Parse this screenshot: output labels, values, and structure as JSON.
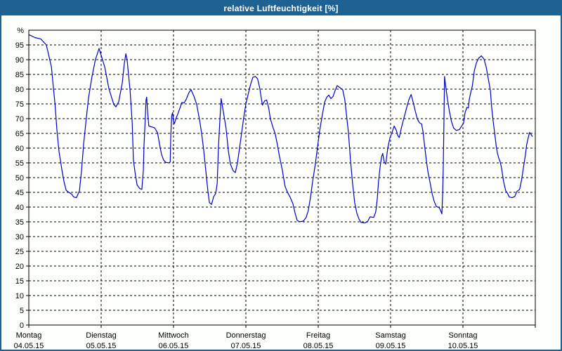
{
  "window": {
    "title": "relative Luftfeuchtigkeit [%]",
    "title_bar_color": "#1d6293",
    "border_color": "#1d6293",
    "background_color": "#fdfffc"
  },
  "chart_data": {
    "type": "line",
    "title": "relative Luftfeuchtigkeit [%]",
    "ylabel": "%",
    "unit_label": "%",
    "ylim": [
      0,
      100
    ],
    "xlim_hours": [
      0,
      168
    ],
    "y_tick_step": 5,
    "y_tick_labels": [
      "0",
      "5",
      "10",
      "15",
      "20",
      "25",
      "30",
      "35",
      "40",
      "45",
      "50",
      "55",
      "60",
      "65",
      "70",
      "75",
      "80",
      "85",
      "90",
      "95"
    ],
    "grid": "dashed",
    "legend": "none",
    "line_color": "#0000c8",
    "x_axis": {
      "days": [
        {
          "name": "Montag",
          "date": "04.05.15"
        },
        {
          "name": "Dienstag",
          "date": "05.05.15"
        },
        {
          "name": "Mittwoch",
          "date": "06.05.15"
        },
        {
          "name": "Donnerstag",
          "date": "07.05.15"
        },
        {
          "name": "Freitag",
          "date": "08.05.15"
        },
        {
          "name": "Samstag",
          "date": "09.05.15"
        },
        {
          "name": "Sonntag",
          "date": "10.05.15"
        }
      ]
    },
    "series": [
      {
        "name": "relative Luftfeuchtigkeit",
        "points": [
          [
            0,
            98.5
          ],
          [
            2,
            97.5
          ],
          [
            4,
            97
          ],
          [
            5.8,
            95
          ],
          [
            6.5,
            92
          ],
          [
            7.5,
            87.5
          ],
          [
            8.2,
            80
          ],
          [
            8.7,
            75
          ],
          [
            9.3,
            66.5
          ],
          [
            10,
            59
          ],
          [
            11,
            52.5
          ],
          [
            11.7,
            48.5
          ],
          [
            12.4,
            45.7
          ],
          [
            13.3,
            45
          ],
          [
            14.2,
            44.4
          ],
          [
            14.9,
            43.4
          ],
          [
            15.8,
            43.2
          ],
          [
            16.8,
            45.5
          ],
          [
            17.5,
            52.5
          ],
          [
            18.2,
            61.5
          ],
          [
            19.1,
            70.5
          ],
          [
            19.8,
            77
          ],
          [
            21,
            84.5
          ],
          [
            22.1,
            90
          ],
          [
            23.3,
            93.8
          ],
          [
            24,
            91.5
          ],
          [
            25.2,
            87.5
          ],
          [
            26.6,
            80
          ],
          [
            28.2,
            74.8
          ],
          [
            28.9,
            74
          ],
          [
            29.8,
            75.7
          ],
          [
            31,
            82
          ],
          [
            31.7,
            88.8
          ],
          [
            32.2,
            92
          ],
          [
            32.6,
            90
          ],
          [
            33.6,
            79.5
          ],
          [
            34.3,
            68.5
          ],
          [
            34.7,
            56
          ],
          [
            35.2,
            52
          ],
          [
            35.9,
            47.5
          ],
          [
            36.8,
            46.3
          ],
          [
            37.5,
            46
          ],
          [
            38,
            52.5
          ],
          [
            38.2,
            60.5
          ],
          [
            38.5,
            67
          ],
          [
            38.9,
            76.4
          ],
          [
            39.1,
            77.3
          ],
          [
            39.4,
            72.5
          ],
          [
            39.8,
            67.5
          ],
          [
            40.8,
            67.2
          ],
          [
            41.7,
            66.9
          ],
          [
            42.7,
            65.2
          ],
          [
            43.3,
            61.7
          ],
          [
            44,
            58
          ],
          [
            44.7,
            56
          ],
          [
            45.4,
            55.2
          ],
          [
            46.4,
            55
          ],
          [
            46.9,
            55.3
          ],
          [
            47.1,
            64
          ],
          [
            47.4,
            71
          ],
          [
            47.7,
            72
          ],
          [
            48,
            69
          ],
          [
            48.3,
            68.3
          ],
          [
            48.8,
            70
          ],
          [
            49.4,
            71.5
          ],
          [
            50.1,
            73.5
          ],
          [
            50.8,
            75.5
          ],
          [
            51.5,
            75.3
          ],
          [
            52.2,
            76.5
          ],
          [
            53.1,
            78.8
          ],
          [
            53.8,
            79.8
          ],
          [
            54.8,
            77.5
          ],
          [
            55.7,
            74.8
          ],
          [
            56.6,
            69.8
          ],
          [
            57.3,
            65.2
          ],
          [
            58,
            59.5
          ],
          [
            58.7,
            52.5
          ],
          [
            59.4,
            45.5
          ],
          [
            59.9,
            41.5
          ],
          [
            60.6,
            40.9
          ],
          [
            61.3,
            43.5
          ],
          [
            62,
            44.7
          ],
          [
            62.5,
            48
          ],
          [
            62.9,
            60
          ],
          [
            63.4,
            70
          ],
          [
            63.8,
            76.8
          ],
          [
            64.5,
            72.5
          ],
          [
            65.4,
            66.9
          ],
          [
            66.2,
            59
          ],
          [
            66.9,
            54.5
          ],
          [
            67.8,
            52.3
          ],
          [
            68.5,
            51.7
          ],
          [
            69.2,
            55
          ],
          [
            69.9,
            60
          ],
          [
            70.6,
            65.2
          ],
          [
            71.3,
            70.5
          ],
          [
            72,
            75
          ],
          [
            72.7,
            78
          ],
          [
            73.4,
            81
          ],
          [
            74.3,
            84
          ],
          [
            75.2,
            84.3
          ],
          [
            75.9,
            83.5
          ],
          [
            76.6,
            80.4
          ],
          [
            77.1,
            77
          ],
          [
            77.5,
            74.6
          ],
          [
            78.2,
            76
          ],
          [
            78.9,
            76.3
          ],
          [
            79.6,
            73.5
          ],
          [
            80.1,
            70
          ],
          [
            81,
            67
          ],
          [
            81.7,
            65
          ],
          [
            82.4,
            61.5
          ],
          [
            83.1,
            57.5
          ],
          [
            84.1,
            52.5
          ],
          [
            85,
            47
          ],
          [
            85.9,
            44.8
          ],
          [
            86.6,
            43.5
          ],
          [
            87.6,
            41.2
          ],
          [
            88.3,
            38
          ],
          [
            89,
            35.5
          ],
          [
            89.9,
            35
          ],
          [
            91.1,
            35.3
          ],
          [
            92,
            36.5
          ],
          [
            92.7,
            38.8
          ],
          [
            93.4,
            43
          ],
          [
            94.1,
            48.3
          ],
          [
            95,
            54.3
          ],
          [
            95.7,
            59.8
          ],
          [
            96.5,
            66
          ],
          [
            97.4,
            71.5
          ],
          [
            98.1,
            75.5
          ],
          [
            98.8,
            77.2
          ],
          [
            99.5,
            78
          ],
          [
            100.2,
            76.8
          ],
          [
            100.9,
            77.5
          ],
          [
            101.6,
            79.5
          ],
          [
            102.3,
            81.2
          ],
          [
            103.2,
            80.5
          ],
          [
            104.1,
            79.8
          ],
          [
            104.8,
            76.5
          ],
          [
            105.5,
            70
          ],
          [
            106,
            65.5
          ],
          [
            106.7,
            56
          ],
          [
            107.4,
            48
          ],
          [
            108.1,
            41.5
          ],
          [
            108.8,
            38
          ],
          [
            109.5,
            36
          ],
          [
            110.2,
            34.8
          ],
          [
            111.4,
            34.6
          ],
          [
            112.3,
            35
          ],
          [
            113.2,
            36.7
          ],
          [
            114.4,
            36.5
          ],
          [
            115.1,
            38.5
          ],
          [
            115.6,
            43
          ],
          [
            116,
            48.6
          ],
          [
            116.5,
            53.5
          ],
          [
            117,
            57
          ],
          [
            117.4,
            58.2
          ],
          [
            117.9,
            55.3
          ],
          [
            118.4,
            54.6
          ],
          [
            119.1,
            60.2
          ],
          [
            119.8,
            63.5
          ],
          [
            120.5,
            65.3
          ],
          [
            121.2,
            67.5
          ],
          [
            121.9,
            66
          ],
          [
            122.4,
            64.2
          ],
          [
            122.9,
            63.6
          ],
          [
            123.5,
            66.5
          ],
          [
            124.2,
            69.3
          ],
          [
            125.4,
            74
          ],
          [
            126.1,
            76.5
          ],
          [
            126.8,
            78.2
          ],
          [
            127.5,
            75.5
          ],
          [
            128.2,
            72.5
          ],
          [
            128.9,
            69.8
          ],
          [
            129.6,
            68.6
          ],
          [
            130.3,
            68.2
          ],
          [
            130.8,
            65.2
          ],
          [
            131.2,
            61.4
          ],
          [
            131.9,
            55.5
          ],
          [
            132.4,
            51.9
          ],
          [
            133.1,
            48.3
          ],
          [
            133.8,
            44.5
          ],
          [
            134.5,
            41.8
          ],
          [
            135.2,
            40.2
          ],
          [
            136.1,
            39.8
          ],
          [
            136.6,
            38.8
          ],
          [
            137,
            37.7
          ],
          [
            137.3,
            45
          ],
          [
            137.5,
            55
          ],
          [
            137.7,
            70
          ],
          [
            137.9,
            84.3
          ],
          [
            138.4,
            80
          ],
          [
            138.8,
            77
          ],
          [
            139.5,
            72.5
          ],
          [
            140.2,
            69
          ],
          [
            140.9,
            66.8
          ],
          [
            141.8,
            66
          ],
          [
            142.8,
            66.3
          ],
          [
            143.5,
            67.4
          ],
          [
            144.2,
            68.5
          ],
          [
            144.7,
            72
          ],
          [
            145.3,
            73.8
          ],
          [
            145.8,
            73.6
          ],
          [
            146.1,
            76.5
          ],
          [
            146.6,
            79
          ],
          [
            147.1,
            81
          ],
          [
            147.8,
            86.4
          ],
          [
            148.5,
            89
          ],
          [
            149.2,
            90.5
          ],
          [
            150.1,
            91.3
          ],
          [
            151,
            90.2
          ],
          [
            151.7,
            87.6
          ],
          [
            152.4,
            83.6
          ],
          [
            153.1,
            79.5
          ],
          [
            153.5,
            74
          ],
          [
            154,
            69.3
          ],
          [
            154.5,
            65.2
          ],
          [
            155,
            61
          ],
          [
            155.4,
            58.5
          ],
          [
            155.9,
            56.5
          ],
          [
            156.3,
            55.5
          ],
          [
            156.8,
            53.3
          ],
          [
            157.5,
            48.6
          ],
          [
            158.2,
            45.5
          ],
          [
            158.7,
            44.8
          ],
          [
            159.4,
            43.4
          ],
          [
            160.3,
            43.2
          ],
          [
            161.2,
            43.6
          ],
          [
            161.9,
            45.3
          ],
          [
            162.8,
            46
          ],
          [
            163.5,
            49.5
          ],
          [
            164,
            53
          ],
          [
            164.7,
            57.5
          ],
          [
            165.1,
            61
          ],
          [
            165.6,
            63.3
          ],
          [
            166.1,
            65.3
          ],
          [
            166.5,
            64.8
          ],
          [
            167,
            64
          ]
        ]
      }
    ]
  }
}
